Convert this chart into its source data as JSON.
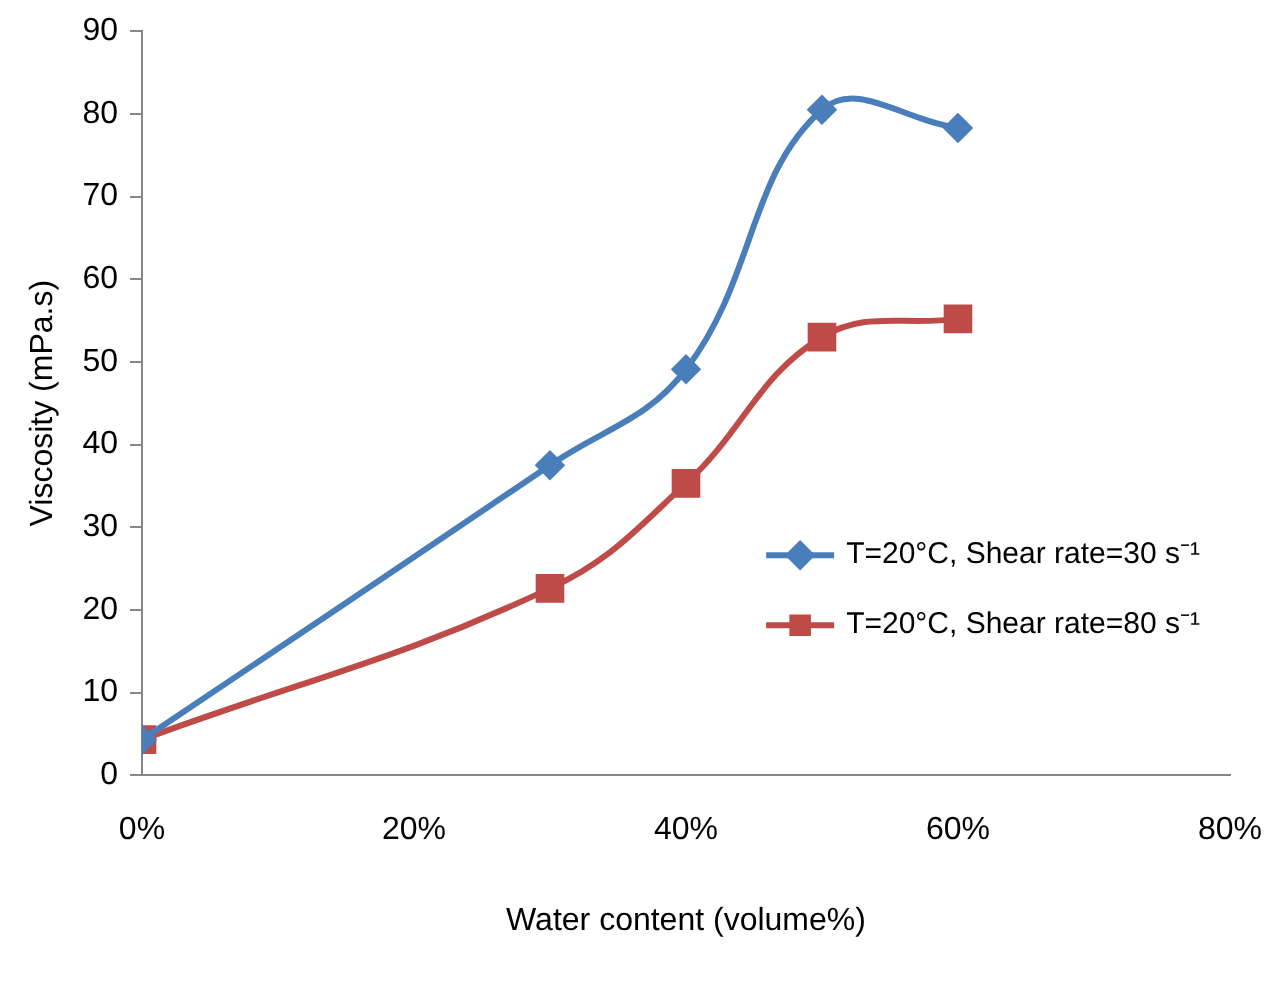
{
  "chart_data": {
    "type": "line",
    "xlabel": "Water content (volume%)",
    "ylabel": "Viscosity (mPa.s)",
    "x": [
      0,
      30,
      40,
      50,
      60
    ],
    "series": [
      {
        "name": "T=20°C, Shear rate=30 s⁻¹",
        "color": "#4a7ebb",
        "marker": "diamond",
        "values": [
          4.3,
          37.5,
          49.1,
          80.5,
          78.3
        ]
      },
      {
        "name": "T=20°C, Shear rate=80 s⁻¹",
        "color": "#be4b48",
        "marker": "square",
        "values": [
          4.3,
          22.6,
          35.3,
          53,
          55.2
        ]
      }
    ],
    "xlim": [
      0,
      80
    ],
    "xticks": [
      {
        "value": 0,
        "label": "0%"
      },
      {
        "value": 20,
        "label": "20%"
      },
      {
        "value": 40,
        "label": "40%"
      },
      {
        "value": 60,
        "label": "60%"
      },
      {
        "value": 80,
        "label": "80%"
      }
    ],
    "ylim": [
      0,
      90
    ],
    "yticks": [
      0,
      10,
      20,
      30,
      40,
      50,
      60,
      70,
      80,
      90
    ],
    "grid": false,
    "legend": "bottom right",
    "line_style": "solid"
  }
}
